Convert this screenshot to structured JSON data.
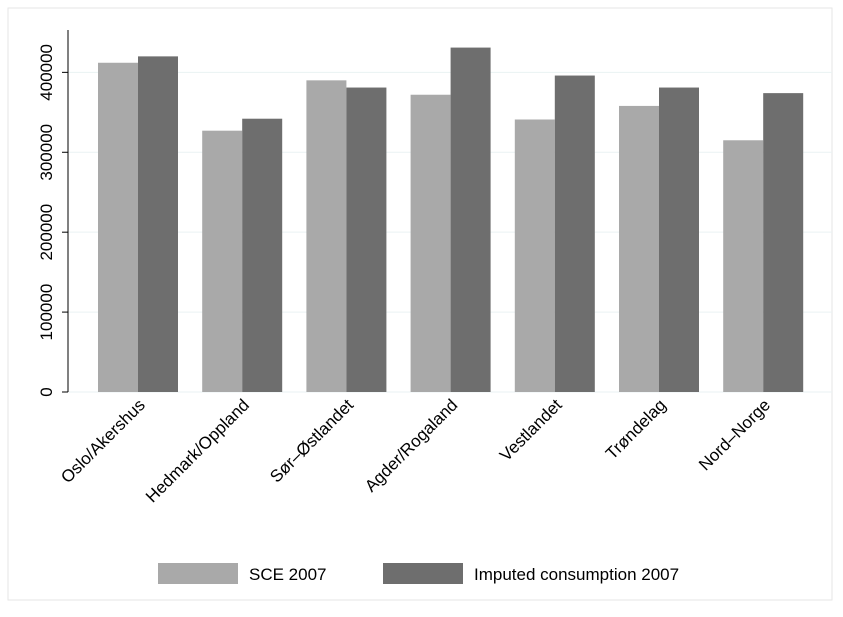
{
  "chart_data": {
    "type": "bar",
    "categories": [
      "Oslo/Akershus",
      "Hedmark/Oppland",
      "Sør–Østlandet",
      "Agder/Rogaland",
      "Vestlandet",
      "Trøndelag",
      "Nord–Norge"
    ],
    "series": [
      {
        "name": "SCE 2007",
        "color": "#a9a9a9",
        "values": [
          412000,
          327000,
          390000,
          372000,
          341000,
          358000,
          315000
        ]
      },
      {
        "name": "Imputed consumption 2007",
        "color": "#6e6e6e",
        "values": [
          420000,
          342000,
          381000,
          431000,
          396000,
          381000,
          374000
        ]
      }
    ],
    "ylim": [
      0,
      453000
    ],
    "yticks": [
      0,
      100000,
      200000,
      300000,
      400000
    ],
    "grid": true
  }
}
